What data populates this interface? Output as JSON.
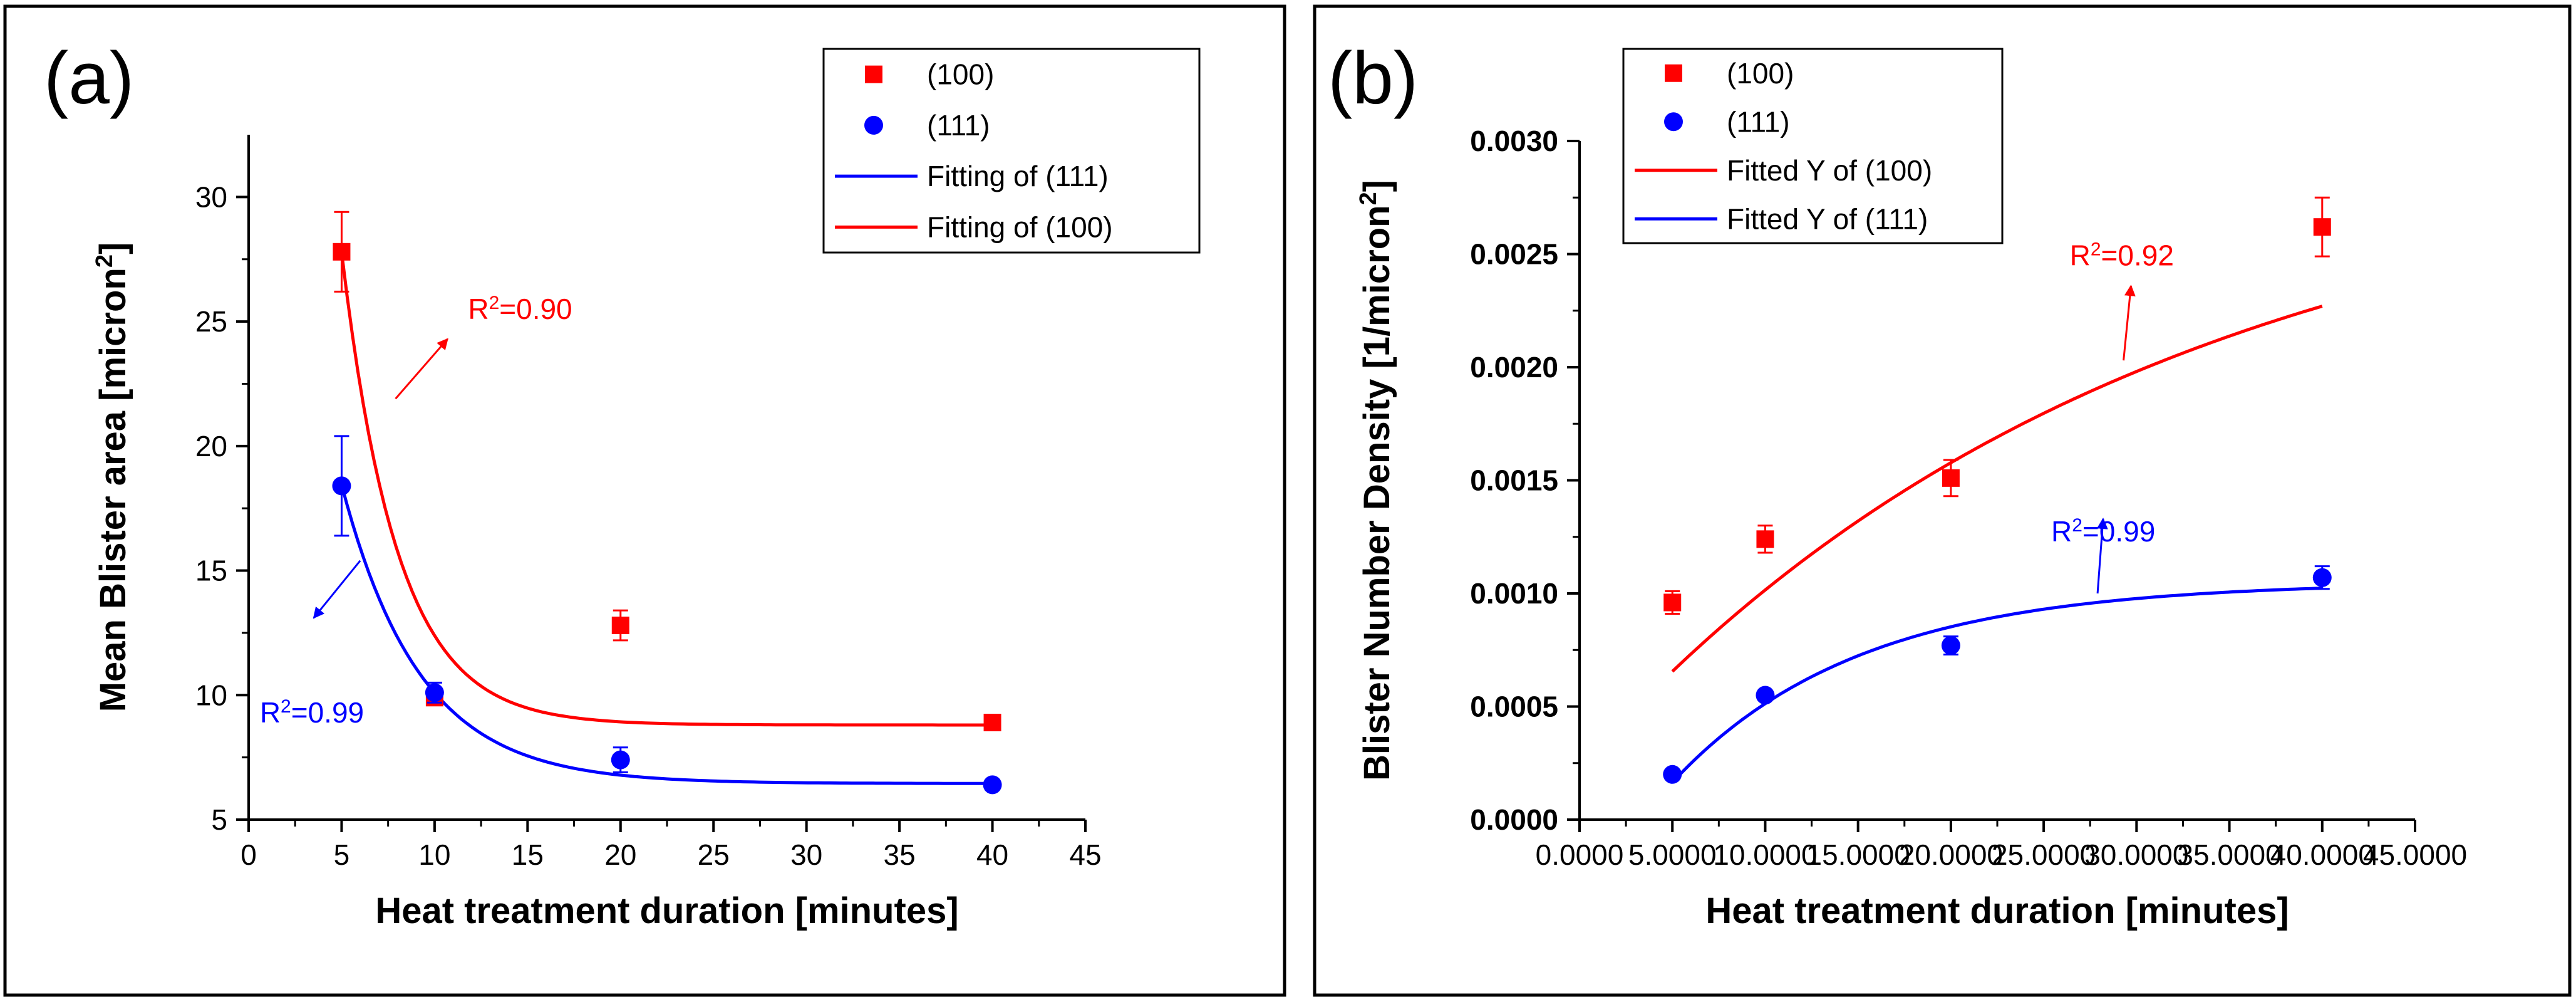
{
  "chart_data": [
    {
      "panel_label": "(a)",
      "type": "scatter",
      "xlabel": "Heat treatment duration [minutes]",
      "ylabel": "Mean Blister area  [micron",
      "ylabel_sup": "2",
      "ylabel_close": "]",
      "xlim": [
        0,
        45
      ],
      "ylim": [
        5,
        32.5
      ],
      "xticks": [
        0,
        5,
        10,
        15,
        20,
        25,
        30,
        35,
        40,
        45
      ],
      "yticks": [
        5,
        10,
        15,
        20,
        25,
        30
      ],
      "x_minor_step": 2.5,
      "y_minor_step": 2.5,
      "tick_format": "integer",
      "legend": {
        "placement": "top-right",
        "entries": [
          {
            "label": "(100)",
            "kind": "square",
            "color": "#ff0000"
          },
          {
            "label": "(111)",
            "kind": "circle",
            "color": "#0000ff"
          },
          {
            "label": "Fitting of (111)",
            "kind": "line",
            "color": "#0000ff"
          },
          {
            "label": "Fitting of (100)",
            "kind": "line",
            "color": "#ff0000"
          }
        ]
      },
      "series": [
        {
          "name": "(100)",
          "marker": "square",
          "color": "#ff0000",
          "x": [
            5,
            10,
            20,
            40
          ],
          "y": [
            27.8,
            9.9,
            12.8,
            8.9
          ],
          "err": [
            1.6,
            0.3,
            0.6,
            0.2
          ]
        },
        {
          "name": "(111)",
          "marker": "circle",
          "color": "#0000ff",
          "x": [
            5,
            10,
            20,
            40
          ],
          "y": [
            18.4,
            10.1,
            7.4,
            6.4
          ],
          "err": [
            2.0,
            0.4,
            0.5,
            0.2
          ]
        }
      ],
      "fits": [
        {
          "name": "Fitting of (100)",
          "color": "#ff0000",
          "model": "exp_decay",
          "y0": 8.8,
          "A": 19.0,
          "tau": 3.0,
          "x_start": 5,
          "x_end": 40
        },
        {
          "name": "Fitting of (111)",
          "color": "#0000ff",
          "model": "exp_decay",
          "y0": 6.45,
          "A": 12.0,
          "tau": 4.2,
          "x_start": 5,
          "x_end": 40
        }
      ],
      "annotations": [
        {
          "text": "R",
          "sup": "2",
          "rest": "=0.90",
          "color": "#ff0000",
          "x": 11.8,
          "y": 25.1,
          "arrow": {
            "from": [
              7.9,
              21.9
            ],
            "to": [
              10.7,
              24.3
            ]
          }
        },
        {
          "text": "R",
          "sup": "2",
          "rest": "=0.99",
          "color": "#0000ff",
          "x": 0.6,
          "y": 8.9,
          "arrow": {
            "from": [
              6.0,
              15.4
            ],
            "to": [
              3.5,
              13.1
            ]
          }
        }
      ]
    },
    {
      "panel_label": "(b)",
      "type": "scatter",
      "xlabel": "Heat treatment duration [minutes]",
      "ylabel": "Blister Number Density [1/micron",
      "ylabel_sup": "2",
      "ylabel_close": "]",
      "xlim": [
        0,
        45
      ],
      "ylim": [
        0,
        0.003
      ],
      "xticks": [
        0,
        5,
        10,
        15,
        20,
        25,
        30,
        35,
        40,
        45
      ],
      "yticks": [
        0,
        0.0005,
        0.001,
        0.0015,
        0.002,
        0.0025,
        0.003
      ],
      "x_minor_step": 2.5,
      "y_minor_step": 0.00025,
      "tick_format": "fixed4",
      "legend": {
        "placement": "top-left",
        "entries": [
          {
            "label": "(100)",
            "kind": "square",
            "color": "#ff0000"
          },
          {
            "label": "(111)",
            "kind": "circle",
            "color": "#0000ff"
          },
          {
            "label": "Fitted Y of (100)",
            "kind": "line",
            "color": "#ff0000"
          },
          {
            "label": "Fitted Y of (111)",
            "kind": "line",
            "color": "#0000ff"
          }
        ]
      },
      "series": [
        {
          "name": "(100)",
          "marker": "square",
          "color": "#ff0000",
          "x": [
            5,
            10,
            20,
            40
          ],
          "y": [
            0.00096,
            0.00124,
            0.00151,
            0.00262
          ],
          "err": [
            5e-05,
            6e-05,
            8e-05,
            0.00013
          ]
        },
        {
          "name": "(111)",
          "marker": "circle",
          "color": "#0000ff",
          "x": [
            5,
            10,
            20,
            40
          ],
          "y": [
            0.0002,
            0.00055,
            0.00077,
            0.00107
          ],
          "err": [
            2e-05,
            2e-05,
            4e-05,
            5e-05
          ]
        }
      ],
      "fits": [
        {
          "name": "Fitted Y of (100)",
          "color": "#ff0000",
          "model": "exp_rise",
          "y0": 0.003,
          "A": 0.00277,
          "tau": 30,
          "x_start": 5,
          "x_end": 40
        },
        {
          "name": "Fitted Y of (111)",
          "color": "#0000ff",
          "model": "exp_rise",
          "y0": 0.00105,
          "A": 0.00146,
          "tau": 10,
          "x_start": 5,
          "x_end": 40
        }
      ],
      "annotations": [
        {
          "text": "R",
          "sup": "2",
          "rest": "=0.92",
          "color": "#ff0000",
          "x": 26.4,
          "y": 0.00245,
          "arrow": {
            "from": [
              29.3,
              0.00203
            ],
            "to": [
              29.7,
              0.00236
            ]
          }
        },
        {
          "text": "R",
          "sup": "2",
          "rest": "=0.99",
          "color": "#0000ff",
          "x": 25.4,
          "y": 0.00123,
          "arrow": {
            "from": [
              27.9,
              0.001
            ],
            "to": [
              28.2,
              0.00133
            ]
          }
        }
      ]
    }
  ]
}
